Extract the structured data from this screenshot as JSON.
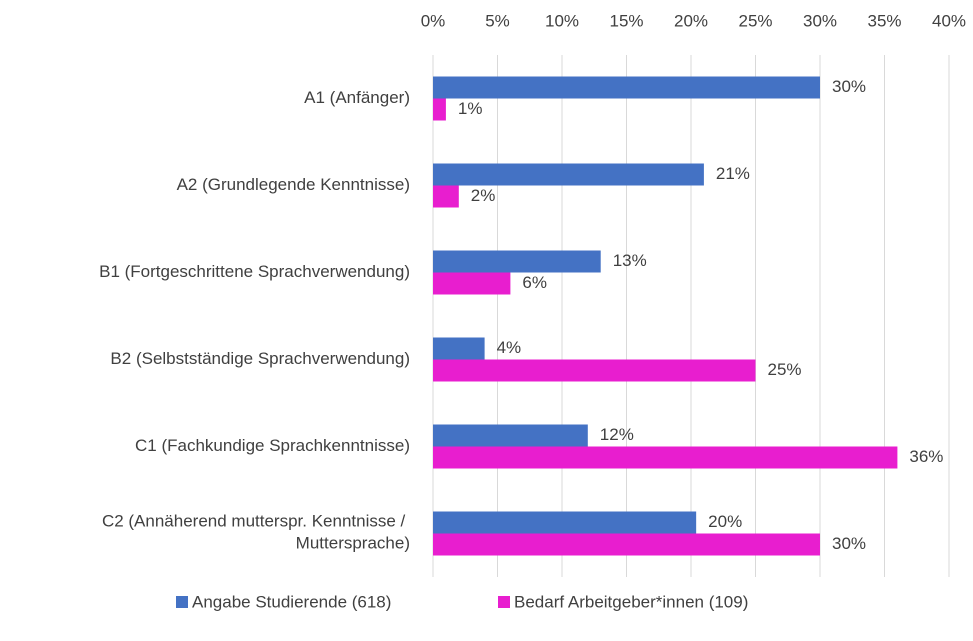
{
  "chart_data": {
    "type": "bar",
    "orientation": "horizontal",
    "categories": [
      "A1 (Anfänger)",
      "A2 (Grundlegende Kenntnisse)",
      "B1 (Fortgeschrittene Sprachverwendung)",
      "B2 (Selbstständige Sprachverwendung)",
      "C1 (Fachkundige Sprachkenntnisse)",
      "C2 (Annäherend mutterspr. Kenntnisse / Muttersprache)"
    ],
    "series": [
      {
        "name": "Angabe Studierende (618)",
        "color": "#4472c4",
        "values": [
          30,
          21,
          13,
          4,
          12,
          20.4
        ],
        "value_labels": [
          "30%",
          "21%",
          "13%",
          "4%",
          "12%",
          "20%"
        ]
      },
      {
        "name": "Bedarf Arbeitgeber*innen (109)",
        "color": "#e81ecf",
        "values": [
          1,
          2,
          6,
          25,
          36,
          30
        ],
        "value_labels": [
          "1%",
          "2%",
          "6%",
          "25%",
          "36%",
          "30%"
        ]
      }
    ],
    "xlim": [
      0,
      40
    ],
    "xticks": [
      {
        "value": 0,
        "label": "0%"
      },
      {
        "value": 5,
        "label": "5%"
      },
      {
        "value": 10,
        "label": "10%"
      },
      {
        "value": 15,
        "label": "15%"
      },
      {
        "value": 20,
        "label": "20%"
      },
      {
        "value": 25,
        "label": "25%"
      },
      {
        "value": 30,
        "label": "30%"
      },
      {
        "value": 35,
        "label": "35%"
      },
      {
        "value": 40,
        "label": "40%"
      }
    ],
    "grid": true,
    "legend": "bottom"
  }
}
